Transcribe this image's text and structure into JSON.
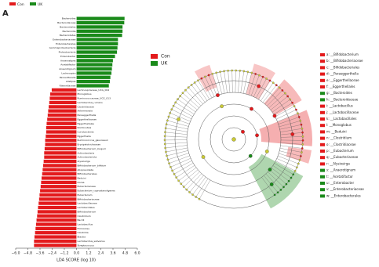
{
  "chart_data": {
    "type": "hbar",
    "panel": "A",
    "xlabel": "LDA SCORE (log 10)",
    "xlim": [
      -6,
      6
    ],
    "xticks": [
      {
        "value": -6,
        "label": "−6.0"
      },
      {
        "value": -4.8,
        "label": "−4.8"
      },
      {
        "value": -3.6,
        "label": "−3.6"
      },
      {
        "value": -2.4,
        "label": "−2.4"
      },
      {
        "value": -1.2,
        "label": "−1.2"
      },
      {
        "value": 0,
        "label": "0.0"
      },
      {
        "value": 1.2,
        "label": "1.2"
      },
      {
        "value": 2.4,
        "label": "2.4"
      },
      {
        "value": 3.6,
        "label": "3.6"
      },
      {
        "value": 4.8,
        "label": "4.8"
      },
      {
        "value": 6,
        "label": "6.0"
      }
    ],
    "categories": [
      "Bacteroides",
      "Bacteroidaceae",
      "Bacteroidales",
      "Bacteroidia",
      "Bacteroidetes",
      "Enterobacteriaceae",
      "Enterobacterales",
      "Gammaproteobacteria",
      "Proteobacteria",
      "Enterobacter",
      "Anaerostipes",
      "Acetatifactor",
      "Anaerotignum",
      "Lachnospira",
      "Parasutterella",
      "Alistipes",
      "Rikenellaceae",
      "Lachnospiraceae_UCG_004",
      "Monoglobus",
      "Ruminococcaceae_UCG_013",
      "Lactobacillus_ruminis",
      "Clostridiaceae",
      "Akkermansia",
      "Paraeggerthella",
      "Eggerthellaceae",
      "Eggerthellales",
      "Romboutsia",
      "Coriobacteriia",
      "Eggerthella",
      "Ruminococcus_gauvreauii",
      "Erysipelotrichaceae",
      "Bifidobacterium_longum",
      "Actinobacteria",
      "Actinobacteriota",
      "Alysiosirga",
      "Bifidobacterium_bifidum",
      "Alloprevotella",
      "Bifidobacteriales",
      "Beduini",
      "Dorea",
      "Eubacteriaceae",
      "Eubacterium_coprostanoligenes",
      "Eubacterium",
      "Bifidobacteriaceae",
      "Lactobacillaceae",
      "Lactobacillales",
      "Bifidobacterium",
      "Clostridium",
      "Bacilli",
      "Lactobacillus",
      "Firmicutes",
      "Clostridia",
      "Blautia",
      "Lactobacillus_salivarius",
      "Streptococcus"
    ],
    "series": [
      {
        "name": "Con",
        "color": "#e31a1c",
        "values": [
          null,
          null,
          null,
          null,
          null,
          null,
          null,
          null,
          null,
          null,
          null,
          null,
          null,
          null,
          null,
          null,
          null,
          -2.45,
          -2.6,
          -2.65,
          -2.7,
          -2.75,
          -2.8,
          -2.85,
          -2.9,
          -2.95,
          -3.0,
          -3.0,
          -3.05,
          -3.1,
          -3.1,
          -3.15,
          -3.2,
          -3.2,
          -3.25,
          -3.3,
          -3.35,
          -3.4,
          -3.45,
          -3.5,
          -3.55,
          -3.6,
          -3.65,
          -3.7,
          -3.75,
          -3.8,
          -3.85,
          -3.9,
          -3.95,
          -4.0,
          -4.05,
          -4.1,
          -4.15,
          -4.2,
          -4.2
        ]
      },
      {
        "name": "UK",
        "color": "#1a8a1a",
        "values": [
          4.75,
          4.72,
          4.55,
          4.55,
          4.5,
          4.1,
          4.1,
          4.05,
          4.0,
          3.8,
          3.6,
          3.55,
          3.5,
          3.45,
          3.35,
          3.3,
          3.2,
          null,
          null,
          null,
          null,
          null,
          null,
          null,
          null,
          null,
          null,
          null,
          null,
          null,
          null,
          null,
          null,
          null,
          null,
          null,
          null,
          null,
          null,
          null,
          null,
          null,
          null,
          null,
          null,
          null,
          null,
          null,
          null,
          null,
          null,
          null,
          null,
          null,
          null
        ]
      }
    ]
  },
  "cladogram": {
    "legend": [
      {
        "name": "Con",
        "color": "#e31a1c"
      },
      {
        "name": "UK",
        "color": "#1a8a1a"
      }
    ],
    "keys": [
      {
        "label": "a: __Bifidobacterium",
        "color": "#e31a1c"
      },
      {
        "label": "b: __Bifidobacteriaceae",
        "color": "#e31a1c"
      },
      {
        "label": "c: __Bifidobacteriales",
        "color": "#e31a1c"
      },
      {
        "label": "d: __Paraeggerthella",
        "color": "#e31a1c"
      },
      {
        "label": "e: __Eggerthellaceae",
        "color": "#e31a1c"
      },
      {
        "label": "f: __Eggerthellales",
        "color": "#e31a1c"
      },
      {
        "label": "g: __Bacteroides",
        "color": "#1a8a1a"
      },
      {
        "label": "h: __Bacteroidaceae",
        "color": "#1a8a1a"
      },
      {
        "label": "i: __Lactobacillus",
        "color": "#e31a1c"
      },
      {
        "label": "j: __Lactobacillaceae",
        "color": "#e31a1c"
      },
      {
        "label": "k: __Lactobacillales",
        "color": "#e31a1c"
      },
      {
        "label": "l: __Monoglobus",
        "color": "#e31a1c"
      },
      {
        "label": "m: __Beduini",
        "color": "#e31a1c"
      },
      {
        "label": "n: __Clostridium",
        "color": "#e31a1c"
      },
      {
        "label": "o: __Clostridiaceae",
        "color": "#e31a1c"
      },
      {
        "label": "p: __Eubacterium",
        "color": "#e31a1c"
      },
      {
        "label": "q: __Eubacteriaceae",
        "color": "#e31a1c"
      },
      {
        "label": "r: __Alysiosirga",
        "color": "#e31a1c"
      },
      {
        "label": "s: __Anaerotignum",
        "color": "#1a8a1a"
      },
      {
        "label": "t: __Acetatifactor",
        "color": "#1a8a1a"
      },
      {
        "label": "u: __Enterobacter",
        "color": "#1a8a1a"
      },
      {
        "label": "v: __Enterobacteriaceae",
        "color": "#1a8a1a"
      },
      {
        "label": "w: __Enterobacterales",
        "color": "#1a8a1a"
      }
    ]
  }
}
